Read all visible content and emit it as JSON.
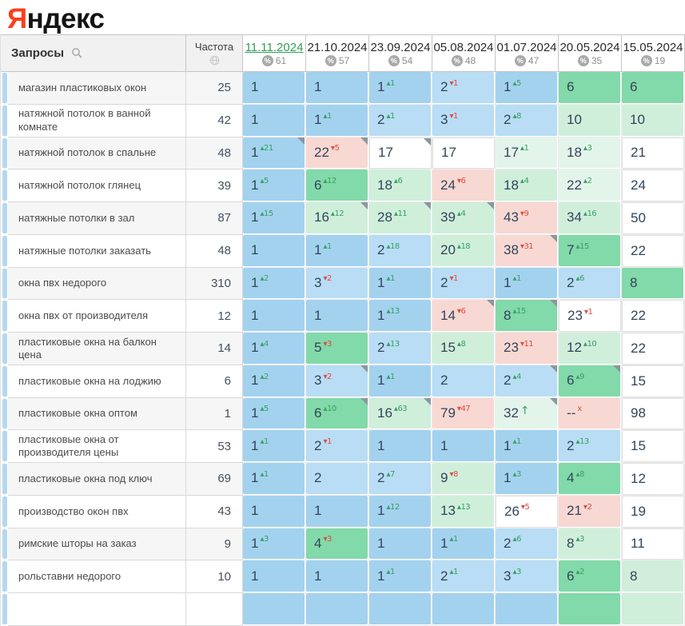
{
  "logo": {
    "first_letter": "Я",
    "rest": "ндекс"
  },
  "header": {
    "queries_label": "Запросы",
    "frequency_label": "Частота",
    "percent_glyph": "%"
  },
  "dates": [
    {
      "label": "11.11.2024",
      "percent": "61",
      "active": true
    },
    {
      "label": "21.10.2024",
      "percent": "57",
      "active": false
    },
    {
      "label": "23.09.2024",
      "percent": "54",
      "active": false
    },
    {
      "label": "05.08.2024",
      "percent": "48",
      "active": false
    },
    {
      "label": "01.07.2024",
      "percent": "47",
      "active": false
    },
    {
      "label": "20.05.2024",
      "percent": "35",
      "active": false
    },
    {
      "label": "15.05.2024",
      "percent": "19",
      "active": false
    }
  ],
  "rows": [
    {
      "query": "магазин пластиковых окон",
      "frequency": "25",
      "cells": [
        {
          "v": "1",
          "bg": "blue"
        },
        {
          "v": "1",
          "bg": "blue"
        },
        {
          "v": "1",
          "d": "up:1",
          "bg": "blue"
        },
        {
          "v": "2",
          "d": "dn:1",
          "bg": "blue2"
        },
        {
          "v": "1",
          "d": "up:5",
          "bg": "blue"
        },
        {
          "v": "6",
          "bg": "green"
        },
        {
          "v": "6",
          "bg": "green"
        }
      ]
    },
    {
      "query": "натяжной потолок в ванной комнате",
      "frequency": "42",
      "cells": [
        {
          "v": "1",
          "bg": "blue"
        },
        {
          "v": "1",
          "d": "up:1",
          "bg": "blue"
        },
        {
          "v": "2",
          "d": "up:1",
          "bg": "blue2"
        },
        {
          "v": "3",
          "d": "dn:1",
          "bg": "blue2"
        },
        {
          "v": "2",
          "d": "up:8",
          "bg": "blue2"
        },
        {
          "v": "10",
          "bg": "lgreen"
        },
        {
          "v": "10",
          "bg": "lgreen"
        }
      ]
    },
    {
      "query": "натяжной потолок в спальне",
      "frequency": "48",
      "cells": [
        {
          "v": "1",
          "d": "up:21",
          "bg": "blue",
          "corner": true
        },
        {
          "v": "22",
          "d": "dn:5",
          "bg": "pink",
          "corner": true
        },
        {
          "v": "17",
          "bg": "white",
          "corner": true
        },
        {
          "v": "17",
          "bg": "white"
        },
        {
          "v": "17",
          "d": "up:1",
          "bg": "pgreen"
        },
        {
          "v": "18",
          "d": "up:3",
          "bg": "pgreen"
        },
        {
          "v": "21",
          "bg": "white"
        }
      ]
    },
    {
      "query": "натяжной потолок глянец",
      "frequency": "39",
      "cells": [
        {
          "v": "1",
          "d": "up:5",
          "bg": "blue"
        },
        {
          "v": "6",
          "d": "up:12",
          "bg": "green"
        },
        {
          "v": "18",
          "d": "up:6",
          "bg": "lgreen"
        },
        {
          "v": "24",
          "d": "dn:6",
          "bg": "pink"
        },
        {
          "v": "18",
          "d": "up:4",
          "bg": "lgreen"
        },
        {
          "v": "22",
          "d": "up:2",
          "bg": "pgreen"
        },
        {
          "v": "24",
          "bg": "white"
        }
      ]
    },
    {
      "query": "натяжные потолки в зал",
      "frequency": "87",
      "cells": [
        {
          "v": "1",
          "d": "up:15",
          "bg": "blue"
        },
        {
          "v": "16",
          "d": "up:12",
          "bg": "lgreen",
          "corner": true
        },
        {
          "v": "28",
          "d": "up:11",
          "bg": "lgreen",
          "corner": true
        },
        {
          "v": "39",
          "d": "up:4",
          "bg": "lgreen",
          "corner": true
        },
        {
          "v": "43",
          "d": "dn:9",
          "bg": "pink"
        },
        {
          "v": "34",
          "d": "up:16",
          "bg": "lgreen"
        },
        {
          "v": "50",
          "bg": "white"
        }
      ]
    },
    {
      "query": "натяжные потолки заказать",
      "frequency": "48",
      "cells": [
        {
          "v": "1",
          "bg": "blue"
        },
        {
          "v": "1",
          "d": "up:1",
          "bg": "blue"
        },
        {
          "v": "2",
          "d": "up:18",
          "bg": "blue2"
        },
        {
          "v": "20",
          "d": "up:18",
          "bg": "lgreen"
        },
        {
          "v": "38",
          "d": "dn:31",
          "bg": "pink",
          "corner": true
        },
        {
          "v": "7",
          "d": "up:15",
          "bg": "green"
        },
        {
          "v": "22",
          "bg": "white"
        }
      ]
    },
    {
      "query": "окна пвх недорого",
      "frequency": "310",
      "cells": [
        {
          "v": "1",
          "d": "up:2",
          "bg": "blue"
        },
        {
          "v": "3",
          "d": "dn:2",
          "bg": "blue2"
        },
        {
          "v": "1",
          "d": "up:1",
          "bg": "blue"
        },
        {
          "v": "2",
          "d": "dn:1",
          "bg": "blue2"
        },
        {
          "v": "1",
          "d": "up:1",
          "bg": "blue"
        },
        {
          "v": "2",
          "d": "up:6",
          "bg": "blue2"
        },
        {
          "v": "8",
          "bg": "green"
        }
      ]
    },
    {
      "query": "окна пвх от производителя",
      "frequency": "12",
      "cells": [
        {
          "v": "1",
          "bg": "blue"
        },
        {
          "v": "1",
          "bg": "blue"
        },
        {
          "v": "1",
          "d": "up:13",
          "bg": "blue"
        },
        {
          "v": "14",
          "d": "dn:6",
          "bg": "pink",
          "corner": true
        },
        {
          "v": "8",
          "d": "up:15",
          "bg": "green",
          "corner": true
        },
        {
          "v": "23",
          "d": "dn:1",
          "bg": "white"
        },
        {
          "v": "22",
          "bg": "white"
        }
      ]
    },
    {
      "query": "пластиковые окна на балкон цена",
      "frequency": "14",
      "cells": [
        {
          "v": "1",
          "d": "up:4",
          "bg": "blue"
        },
        {
          "v": "5",
          "d": "dn:3",
          "bg": "green"
        },
        {
          "v": "2",
          "d": "up:13",
          "bg": "blue2"
        },
        {
          "v": "15",
          "d": "up:8",
          "bg": "lgreen"
        },
        {
          "v": "23",
          "d": "dn:11",
          "bg": "pink"
        },
        {
          "v": "12",
          "d": "up:10",
          "bg": "lgreen"
        },
        {
          "v": "22",
          "bg": "white"
        }
      ]
    },
    {
      "query": "пластиковые окна на лоджию",
      "frequency": "6",
      "cells": [
        {
          "v": "1",
          "d": "up:2",
          "bg": "blue"
        },
        {
          "v": "3",
          "d": "dn:2",
          "bg": "blue2",
          "corner": true
        },
        {
          "v": "1",
          "d": "up:1",
          "bg": "blue"
        },
        {
          "v": "2",
          "bg": "blue2"
        },
        {
          "v": "2",
          "d": "up:4",
          "bg": "blue2",
          "corner": true
        },
        {
          "v": "6",
          "d": "up:9",
          "bg": "green",
          "corner": true
        },
        {
          "v": "15",
          "bg": "white"
        }
      ]
    },
    {
      "query": "пластиковые окна оптом",
      "frequency": "1",
      "cells": [
        {
          "v": "1",
          "d": "up:5",
          "bg": "blue"
        },
        {
          "v": "6",
          "d": "up:10",
          "bg": "green",
          "corner": true
        },
        {
          "v": "16",
          "d": "up:63",
          "bg": "lgreen",
          "corner": true
        },
        {
          "v": "79",
          "d": "dn:47",
          "bg": "pink"
        },
        {
          "v": "32",
          "d": "arr",
          "bg": "pgreen",
          "corner": true
        },
        {
          "v": "--",
          "d": "x",
          "bg": "pink"
        },
        {
          "v": "98",
          "bg": "white"
        }
      ]
    },
    {
      "query": "пластиковые окна от производителя цены",
      "frequency": "53",
      "cells": [
        {
          "v": "1",
          "d": "up:1",
          "bg": "blue"
        },
        {
          "v": "2",
          "d": "dn:1",
          "bg": "blue2"
        },
        {
          "v": "1",
          "bg": "blue"
        },
        {
          "v": "1",
          "bg": "blue"
        },
        {
          "v": "1",
          "d": "up:1",
          "bg": "blue"
        },
        {
          "v": "2",
          "d": "up:13",
          "bg": "blue2"
        },
        {
          "v": "15",
          "bg": "white"
        }
      ]
    },
    {
      "query": "пластиковые окна под ключ",
      "frequency": "69",
      "cells": [
        {
          "v": "1",
          "d": "up:1",
          "bg": "blue"
        },
        {
          "v": "2",
          "bg": "blue2"
        },
        {
          "v": "2",
          "d": "up:7",
          "bg": "blue2"
        },
        {
          "v": "9",
          "d": "dn:8",
          "bg": "lgreen"
        },
        {
          "v": "1",
          "d": "up:3",
          "bg": "blue"
        },
        {
          "v": "4",
          "d": "up:8",
          "bg": "green"
        },
        {
          "v": "12",
          "bg": "white"
        }
      ]
    },
    {
      "query": "производство окон пвх",
      "frequency": "43",
      "cells": [
        {
          "v": "1",
          "bg": "blue"
        },
        {
          "v": "1",
          "bg": "blue"
        },
        {
          "v": "1",
          "d": "up:12",
          "bg": "blue"
        },
        {
          "v": "13",
          "d": "up:13",
          "bg": "lgreen"
        },
        {
          "v": "26",
          "d": "dn:5",
          "bg": "white"
        },
        {
          "v": "21",
          "d": "dn:2",
          "bg": "pink"
        },
        {
          "v": "19",
          "bg": "white"
        }
      ]
    },
    {
      "query": "римские шторы на заказ",
      "frequency": "9",
      "cells": [
        {
          "v": "1",
          "d": "up:3",
          "bg": "blue"
        },
        {
          "v": "4",
          "d": "dn:3",
          "bg": "green"
        },
        {
          "v": "1",
          "bg": "blue"
        },
        {
          "v": "1",
          "d": "up:1",
          "bg": "blue"
        },
        {
          "v": "2",
          "d": "up:6",
          "bg": "blue2"
        },
        {
          "v": "8",
          "d": "up:3",
          "bg": "lgreen"
        },
        {
          "v": "11",
          "bg": "white"
        }
      ]
    },
    {
      "query": "рольставни недорого",
      "frequency": "10",
      "cells": [
        {
          "v": "1",
          "bg": "blue"
        },
        {
          "v": "1",
          "bg": "blue"
        },
        {
          "v": "1",
          "d": "up:1",
          "bg": "blue"
        },
        {
          "v": "2",
          "d": "up:1",
          "bg": "blue2"
        },
        {
          "v": "3",
          "d": "up:3",
          "bg": "blue2"
        },
        {
          "v": "6",
          "d": "up:2",
          "bg": "green"
        },
        {
          "v": "8",
          "bg": "lgreen"
        }
      ]
    }
  ],
  "partial_row_bgs": [
    "blue",
    "blue",
    "blue",
    "blue",
    "blue",
    "green",
    "lgreen"
  ],
  "colors": {
    "blue": "#a3d2ef",
    "blue_light": "#b8ddf4",
    "green": "#82d9a9",
    "green_light": "#cfefdb",
    "green_pale": "#e3f5ea",
    "pink": "#f8d8d3",
    "white": "#ffffff",
    "delta_up": "#3aa066",
    "delta_down": "#e14b40",
    "date_active": "#2f9e55",
    "logo_red": "#fb3f1d"
  }
}
